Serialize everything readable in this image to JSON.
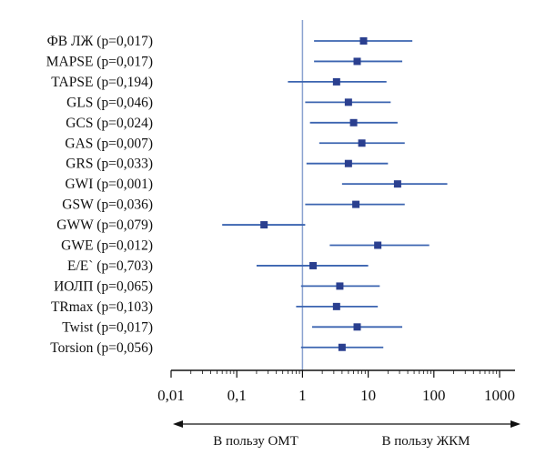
{
  "chart_data": {
    "type": "forest",
    "xscale": "log",
    "xlim": [
      0.01,
      1000
    ],
    "reference_line": 1,
    "ticks": [
      {
        "value": 0.01,
        "label": "0,01"
      },
      {
        "value": 0.1,
        "label": "0,1"
      },
      {
        "value": 1,
        "label": "1"
      },
      {
        "value": 10,
        "label": "10"
      },
      {
        "value": 100,
        "label": "100"
      },
      {
        "value": 1000,
        "label": "1000"
      }
    ],
    "rows": [
      {
        "label": "ФВ ЛЖ (p=0,017)",
        "estimate": 8.5,
        "lower": 1.5,
        "upper": 47
      },
      {
        "label": "MAPSE (p=0,017)",
        "estimate": 6.8,
        "lower": 1.5,
        "upper": 33
      },
      {
        "label": "TAPSE (p=0,194)",
        "estimate": 3.3,
        "lower": 0.6,
        "upper": 19
      },
      {
        "label": "GLS (p=0,046)",
        "estimate": 5.0,
        "lower": 1.1,
        "upper": 22
      },
      {
        "label": "GCS (p=0,024)",
        "estimate": 6.0,
        "lower": 1.3,
        "upper": 28
      },
      {
        "label": "GAS (p=0,007)",
        "estimate": 8.0,
        "lower": 1.8,
        "upper": 36
      },
      {
        "label": "GRS (p=0,033)",
        "estimate": 5.0,
        "lower": 1.15,
        "upper": 20
      },
      {
        "label": "GWI (p=0,001)",
        "estimate": 28,
        "lower": 4,
        "upper": 160
      },
      {
        "label": "GSW (p=0,036)",
        "estimate": 6.5,
        "lower": 1.1,
        "upper": 36
      },
      {
        "label": "GWW (p=0,079)",
        "estimate": 0.26,
        "lower": 0.06,
        "upper": 1.1
      },
      {
        "label": "GWE (p=0,012)",
        "estimate": 14,
        "lower": 2.6,
        "upper": 85
      },
      {
        "label": "E/E` (p=0,703)",
        "estimate": 1.45,
        "lower": 0.2,
        "upper": 10
      },
      {
        "label": "ИОЛП (p=0,065)",
        "estimate": 3.7,
        "lower": 0.95,
        "upper": 15
      },
      {
        "label": "TRmax (p=0,103)",
        "estimate": 3.3,
        "lower": 0.8,
        "upper": 14
      },
      {
        "label": "Twist (p=0,017)",
        "estimate": 6.8,
        "lower": 1.4,
        "upper": 33
      },
      {
        "label": "Torsion (p=0,056)",
        "estimate": 4.0,
        "lower": 0.95,
        "upper": 17
      }
    ],
    "direction_labels": {
      "left": "В пользу ОМТ",
      "right": "В пользу ЖКМ"
    },
    "colors": {
      "marker": "#2a3f8f",
      "ci_line": "#3b64b0",
      "reference": "#8aa2d0",
      "axis": "#111111"
    }
  }
}
